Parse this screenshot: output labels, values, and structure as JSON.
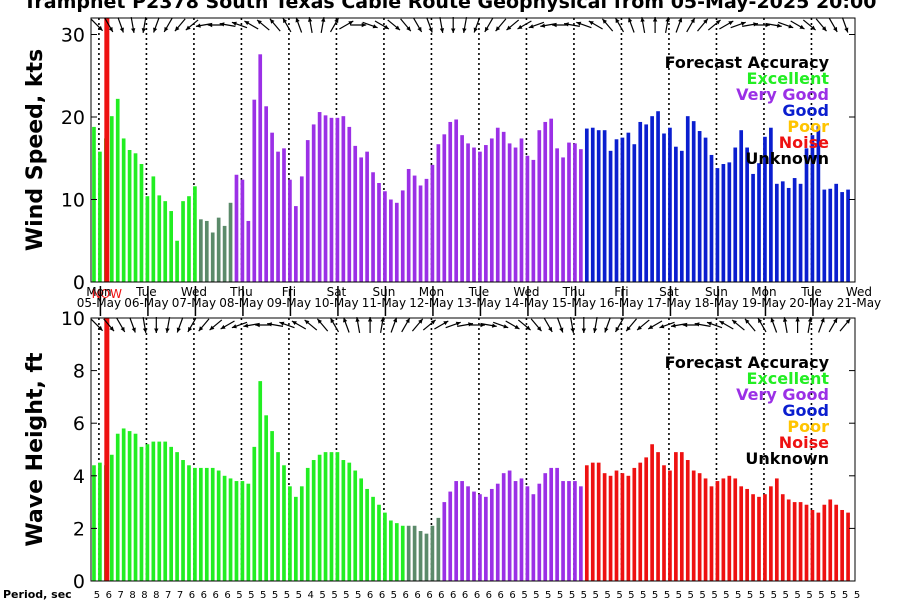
{
  "title": "Tramphet P2378 South Texas Cable Route Geophysical from 05-May-2025 20:00",
  "period_label": "Period, sec",
  "accuracy_colors": {
    "Excellent": "#22ee22",
    "Very Good": "#9b30e6",
    "Good": "#0a1ecf",
    "Poor": "#ffc400",
    "Noise": "#ee1111",
    "Unknown": "#000000",
    "Transition": "#5b8a6a"
  },
  "legend": {
    "title": "Forecast Accuracy",
    "entries": [
      {
        "label": "Excellent",
        "color": "#22ee22"
      },
      {
        "label": "Very Good",
        "color": "#9b30e6"
      },
      {
        "label": "Good",
        "color": "#0a1ecf"
      },
      {
        "label": "Poor",
        "color": "#ffc400"
      },
      {
        "label": "Noise",
        "color": "#ee1111"
      },
      {
        "label": "Unknown",
        "color": "#000000"
      }
    ]
  },
  "x_axis": {
    "unit": "hours",
    "range": [
      0,
      386
    ],
    "days": [
      {
        "dow": "Mon",
        "date": "05-May"
      },
      {
        "dow": "Tue",
        "date": "06-May"
      },
      {
        "dow": "Wed",
        "date": "07-May"
      },
      {
        "dow": "Thu",
        "date": "08-May"
      },
      {
        "dow": "Fri",
        "date": "09-May"
      },
      {
        "dow": "Sat",
        "date": "10-May"
      },
      {
        "dow": "Sun",
        "date": "11-May"
      },
      {
        "dow": "Mon",
        "date": "12-May"
      },
      {
        "dow": "Tue",
        "date": "13-May"
      },
      {
        "dow": "Wed",
        "date": "14-May"
      },
      {
        "dow": "Thu",
        "date": "15-May"
      },
      {
        "dow": "Fri",
        "date": "16-May"
      },
      {
        "dow": "Sat",
        "date": "17-May"
      },
      {
        "dow": "Sun",
        "date": "18-May"
      },
      {
        "dow": "Mon",
        "date": "19-May"
      },
      {
        "dow": "Tue",
        "date": "20-May"
      },
      {
        "dow": "Wed",
        "date": "21-May"
      }
    ]
  },
  "now_label": "NOW",
  "chart_data": [
    {
      "type": "bar",
      "ylabel": "Wind Speed, kts",
      "ylim": [
        0,
        32
      ],
      "yticks": [
        0,
        10,
        20,
        30
      ],
      "bar_step_hours": 3,
      "values": [
        18.8,
        15.8,
        17.4,
        20.1,
        22.2,
        17.4,
        16.0,
        15.6,
        14.3,
        10.4,
        12.8,
        10.5,
        9.8,
        8.6,
        5.0,
        9.8,
        10.4,
        11.6,
        7.6,
        7.4,
        6.0,
        7.8,
        6.8,
        9.6,
        13.0,
        12.4,
        7.4,
        22.1,
        27.6,
        21.3,
        18.1,
        15.8,
        16.2,
        12.4,
        9.2,
        12.8,
        17.2,
        19.1,
        20.6,
        20.2,
        19.9,
        19.9,
        20.1,
        18.8,
        16.5,
        15.1,
        15.8,
        13.3,
        12.0,
        11.0,
        10.0,
        9.6,
        11.1,
        13.7,
        12.9,
        11.7,
        12.5,
        14.2,
        16.7,
        17.9,
        19.4,
        19.7,
        17.8,
        16.8,
        16.3,
        15.8,
        16.6,
        17.4,
        18.7,
        18.2,
        16.8,
        16.3,
        17.4,
        15.3,
        14.8,
        18.4,
        19.4,
        19.8,
        16.2,
        15.1,
        16.9,
        16.8,
        16.1,
        18.6,
        18.7,
        18.4,
        18.4,
        15.9,
        17.3,
        17.5,
        18.1,
        16.7,
        19.4,
        19.1,
        20.1,
        20.7,
        18.0,
        18.7,
        16.4,
        15.9,
        20.1,
        19.5,
        18.3,
        17.5,
        15.4,
        13.8,
        14.3,
        14.5,
        16.3,
        18.4,
        16.3,
        13.1,
        14.4,
        17.6,
        18.7,
        11.9,
        12.2,
        11.4,
        12.6,
        11.9,
        16.2,
        17.8,
        18.9,
        11.2,
        11.3,
        11.9,
        10.9,
        11.2
      ],
      "accuracy": [
        "Excellent",
        "Excellent",
        "Excellent",
        "Excellent",
        "Excellent",
        "Excellent",
        "Excellent",
        "Excellent",
        "Excellent",
        "Excellent",
        "Excellent",
        "Excellent",
        "Excellent",
        "Excellent",
        "Excellent",
        "Excellent",
        "Excellent",
        "Excellent",
        "Transition",
        "Transition",
        "Transition",
        "Transition",
        "Transition",
        "Transition",
        "Very Good",
        "Very Good",
        "Very Good",
        "Very Good",
        "Very Good",
        "Very Good",
        "Very Good",
        "Very Good",
        "Very Good",
        "Very Good",
        "Very Good",
        "Very Good",
        "Very Good",
        "Very Good",
        "Very Good",
        "Very Good",
        "Very Good",
        "Very Good",
        "Very Good",
        "Very Good",
        "Very Good",
        "Very Good",
        "Very Good",
        "Very Good",
        "Very Good",
        "Very Good",
        "Very Good",
        "Very Good",
        "Very Good",
        "Very Good",
        "Very Good",
        "Very Good",
        "Very Good",
        "Very Good",
        "Very Good",
        "Very Good",
        "Very Good",
        "Very Good",
        "Very Good",
        "Very Good",
        "Very Good",
        "Very Good",
        "Very Good",
        "Very Good",
        "Very Good",
        "Very Good",
        "Very Good",
        "Very Good",
        "Very Good",
        "Very Good",
        "Very Good",
        "Very Good",
        "Very Good",
        "Very Good",
        "Very Good",
        "Very Good",
        "Very Good",
        "Very Good",
        "Very Good",
        "Good",
        "Good",
        "Good",
        "Good",
        "Good",
        "Good",
        "Good",
        "Good",
        "Good",
        "Good",
        "Good",
        "Good",
        "Good",
        "Good",
        "Good",
        "Good",
        "Good",
        "Good",
        "Good",
        "Good",
        "Good",
        "Good",
        "Good",
        "Good",
        "Good",
        "Good",
        "Good",
        "Good",
        "Good",
        "Good",
        "Good",
        "Good",
        "Good",
        "Good",
        "Good",
        "Good",
        "Good",
        "Good",
        "Good",
        "Good",
        "Good",
        "Good",
        "Good",
        "Good",
        "Good"
      ]
    },
    {
      "type": "bar",
      "ylabel": "Wave Height, ft",
      "ylim": [
        0,
        10
      ],
      "yticks": [
        0,
        2,
        4,
        6,
        8,
        10
      ],
      "bar_step_hours": 3,
      "values": [
        4.4,
        4.5,
        4.4,
        4.8,
        5.6,
        5.8,
        5.7,
        5.6,
        5.1,
        5.2,
        5.3,
        5.3,
        5.3,
        5.1,
        4.9,
        4.6,
        4.4,
        4.3,
        4.3,
        4.3,
        4.3,
        4.2,
        4.0,
        3.9,
        3.8,
        3.8,
        3.7,
        5.1,
        7.6,
        6.3,
        5.7,
        4.9,
        4.4,
        3.6,
        3.2,
        3.6,
        4.3,
        4.6,
        4.8,
        4.9,
        4.9,
        4.9,
        4.6,
        4.5,
        4.2,
        3.9,
        3.5,
        3.2,
        2.9,
        2.6,
        2.3,
        2.2,
        2.1,
        2.1,
        2.1,
        1.9,
        1.8,
        2.1,
        2.4,
        3.0,
        3.4,
        3.8,
        3.8,
        3.6,
        3.4,
        3.3,
        3.2,
        3.5,
        3.7,
        4.1,
        4.2,
        3.8,
        3.9,
        3.6,
        3.3,
        3.7,
        4.1,
        4.3,
        4.3,
        3.8,
        3.8,
        3.8,
        3.6,
        4.4,
        4.5,
        4.5,
        4.1,
        4.0,
        4.2,
        4.1,
        4.0,
        4.3,
        4.5,
        4.7,
        5.2,
        4.9,
        4.4,
        4.2,
        4.9,
        4.9,
        4.6,
        4.2,
        4.1,
        3.9,
        3.6,
        3.8,
        3.9,
        4.0,
        3.9,
        3.6,
        3.5,
        3.3,
        3.2,
        3.3,
        3.6,
        3.9,
        3.3,
        3.1,
        3.0,
        3.0,
        2.9,
        2.7,
        2.6,
        2.9,
        3.1,
        2.9,
        2.7,
        2.6,
        2.5,
        2.4,
        2.3
      ],
      "accuracy": [
        "Excellent",
        "Excellent",
        "Excellent",
        "Excellent",
        "Excellent",
        "Excellent",
        "Excellent",
        "Excellent",
        "Excellent",
        "Excellent",
        "Excellent",
        "Excellent",
        "Excellent",
        "Excellent",
        "Excellent",
        "Excellent",
        "Excellent",
        "Excellent",
        "Excellent",
        "Excellent",
        "Excellent",
        "Excellent",
        "Excellent",
        "Excellent",
        "Excellent",
        "Excellent",
        "Excellent",
        "Excellent",
        "Excellent",
        "Excellent",
        "Excellent",
        "Excellent",
        "Excellent",
        "Excellent",
        "Excellent",
        "Excellent",
        "Excellent",
        "Excellent",
        "Excellent",
        "Excellent",
        "Excellent",
        "Excellent",
        "Excellent",
        "Excellent",
        "Excellent",
        "Excellent",
        "Excellent",
        "Excellent",
        "Excellent",
        "Excellent",
        "Excellent",
        "Excellent",
        "Excellent",
        "Transition",
        "Transition",
        "Transition",
        "Transition",
        "Transition",
        "Transition",
        "Very Good",
        "Very Good",
        "Very Good",
        "Very Good",
        "Very Good",
        "Very Good",
        "Very Good",
        "Very Good",
        "Very Good",
        "Very Good",
        "Very Good",
        "Very Good",
        "Very Good",
        "Very Good",
        "Very Good",
        "Very Good",
        "Very Good",
        "Very Good",
        "Very Good",
        "Very Good",
        "Very Good",
        "Very Good",
        "Very Good",
        "Very Good",
        "Noise",
        "Noise",
        "Noise",
        "Noise",
        "Noise",
        "Noise",
        "Noise",
        "Noise",
        "Noise",
        "Noise",
        "Noise",
        "Noise",
        "Noise",
        "Noise",
        "Noise",
        "Noise",
        "Noise",
        "Noise",
        "Noise",
        "Noise",
        "Noise",
        "Noise",
        "Noise",
        "Noise",
        "Noise",
        "Noise",
        "Noise",
        "Noise",
        "Noise",
        "Noise",
        "Noise",
        "Noise",
        "Noise",
        "Noise",
        "Noise",
        "Noise",
        "Noise",
        "Noise",
        "Noise",
        "Noise",
        "Noise",
        "Noise",
        "Noise",
        "Noise",
        "Noise",
        "Noise"
      ]
    }
  ],
  "wind_dir_deg": [
    135,
    150,
    160,
    170,
    190,
    200,
    210,
    220,
    230,
    260,
    270,
    280,
    290,
    300,
    310,
    320,
    330,
    340,
    350,
    10,
    30,
    60,
    90,
    110,
    120,
    130,
    140,
    150,
    160,
    170,
    180,
    190,
    200,
    210,
    220,
    230,
    240,
    250,
    260,
    270,
    280,
    290,
    300,
    320,
    330,
    340,
    350,
    0,
    10,
    20,
    30,
    40,
    50,
    60,
    70,
    80,
    90,
    100,
    110,
    120,
    130,
    140,
    150,
    160,
    150,
    140,
    130,
    120,
    110,
    100,
    90,
    80
  ],
  "wave_dir_deg": [
    135,
    140,
    150,
    160,
    170,
    180,
    190,
    200,
    210,
    220,
    230,
    240,
    250,
    260,
    270,
    280,
    290,
    300,
    310,
    320,
    330,
    340,
    350,
    0,
    10,
    20,
    30,
    40,
    50,
    60,
    70,
    80,
    90,
    100,
    110,
    120,
    130,
    140,
    150,
    160,
    170,
    180,
    190,
    200,
    210,
    220,
    230,
    240,
    250,
    260,
    270,
    280,
    290,
    300,
    310,
    320,
    330,
    340,
    350,
    0,
    10,
    20,
    30,
    40,
    50,
    60,
    70,
    80,
    90,
    100,
    110,
    120
  ],
  "periods": [
    5,
    6,
    7,
    8,
    8,
    8,
    7,
    7,
    6,
    6,
    6,
    6,
    5,
    5,
    5,
    5,
    5,
    5,
    4,
    5,
    5,
    5,
    5,
    6,
    6,
    5,
    6,
    6,
    6,
    6,
    6,
    6,
    6,
    6,
    6,
    6,
    5,
    5,
    5,
    5,
    5,
    5,
    5,
    5,
    5,
    5,
    5,
    5,
    5,
    5,
    5,
    5,
    5,
    5,
    5,
    5,
    5,
    5,
    5,
    5,
    5,
    5,
    5,
    5,
    5,
    5,
    5,
    5,
    5,
    5,
    5,
    5
  ]
}
